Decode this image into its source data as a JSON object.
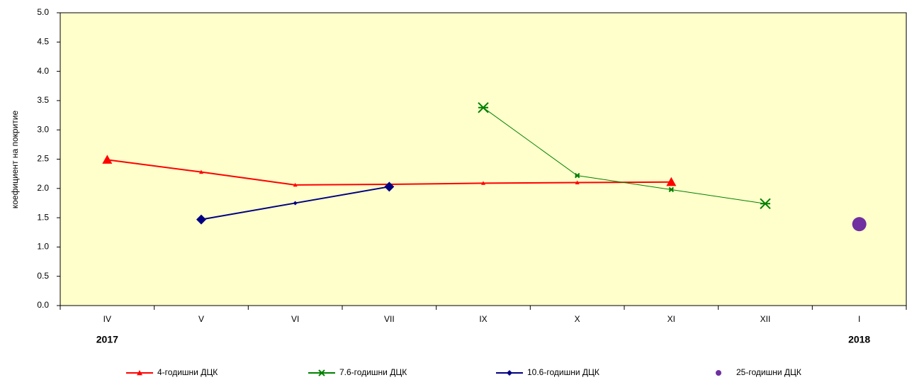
{
  "chart_data": {
    "type": "line",
    "y_label": "коефициент на покритие",
    "categories": [
      "IV",
      "V",
      "VI",
      "VII",
      "IX",
      "X",
      "XI",
      "XII",
      "I"
    ],
    "year_labels": [
      "2017",
      null,
      null,
      null,
      null,
      null,
      null,
      null,
      "2018"
    ],
    "ylim": [
      0,
      5
    ],
    "yticks": [
      {
        "value": 0,
        "label": "0.0"
      },
      {
        "value": 0.5,
        "label": "0.5"
      },
      {
        "value": 1,
        "label": "1.0"
      },
      {
        "value": 1.5,
        "label": "1.5"
      },
      {
        "value": 2,
        "label": "2.0"
      },
      {
        "value": 2.5,
        "label": "2.5"
      },
      {
        "value": 3,
        "label": "3.0"
      },
      {
        "value": 3.5,
        "label": "3.5"
      },
      {
        "value": 4,
        "label": "4.0"
      },
      {
        "value": 4.5,
        "label": "4.5"
      },
      {
        "value": 5,
        "label": "5.0"
      }
    ],
    "background": "#ffffcc",
    "series": [
      {
        "name": "4-годишни ДЦК",
        "color": "#ff0000",
        "marker": "triangle",
        "values": [
          2.49,
          2.28,
          2.06,
          2.07,
          2.09,
          2.1,
          2.11,
          null,
          null
        ]
      },
      {
        "name": "7.6-годишни ДЦК",
        "color": "#008000",
        "marker": "star",
        "values": [
          null,
          null,
          null,
          null,
          3.38,
          2.22,
          1.98,
          1.74,
          null
        ]
      },
      {
        "name": "10.6-годишни ДЦК",
        "color": "#000080",
        "marker": "diamond",
        "values": [
          null,
          1.47,
          1.75,
          2.03,
          null,
          null,
          null,
          null,
          null
        ]
      },
      {
        "name": "25-годишни ДЦК",
        "color": "#7030a0",
        "marker": "circle",
        "values": [
          null,
          null,
          null,
          null,
          null,
          null,
          null,
          null,
          1.39
        ]
      }
    ]
  }
}
